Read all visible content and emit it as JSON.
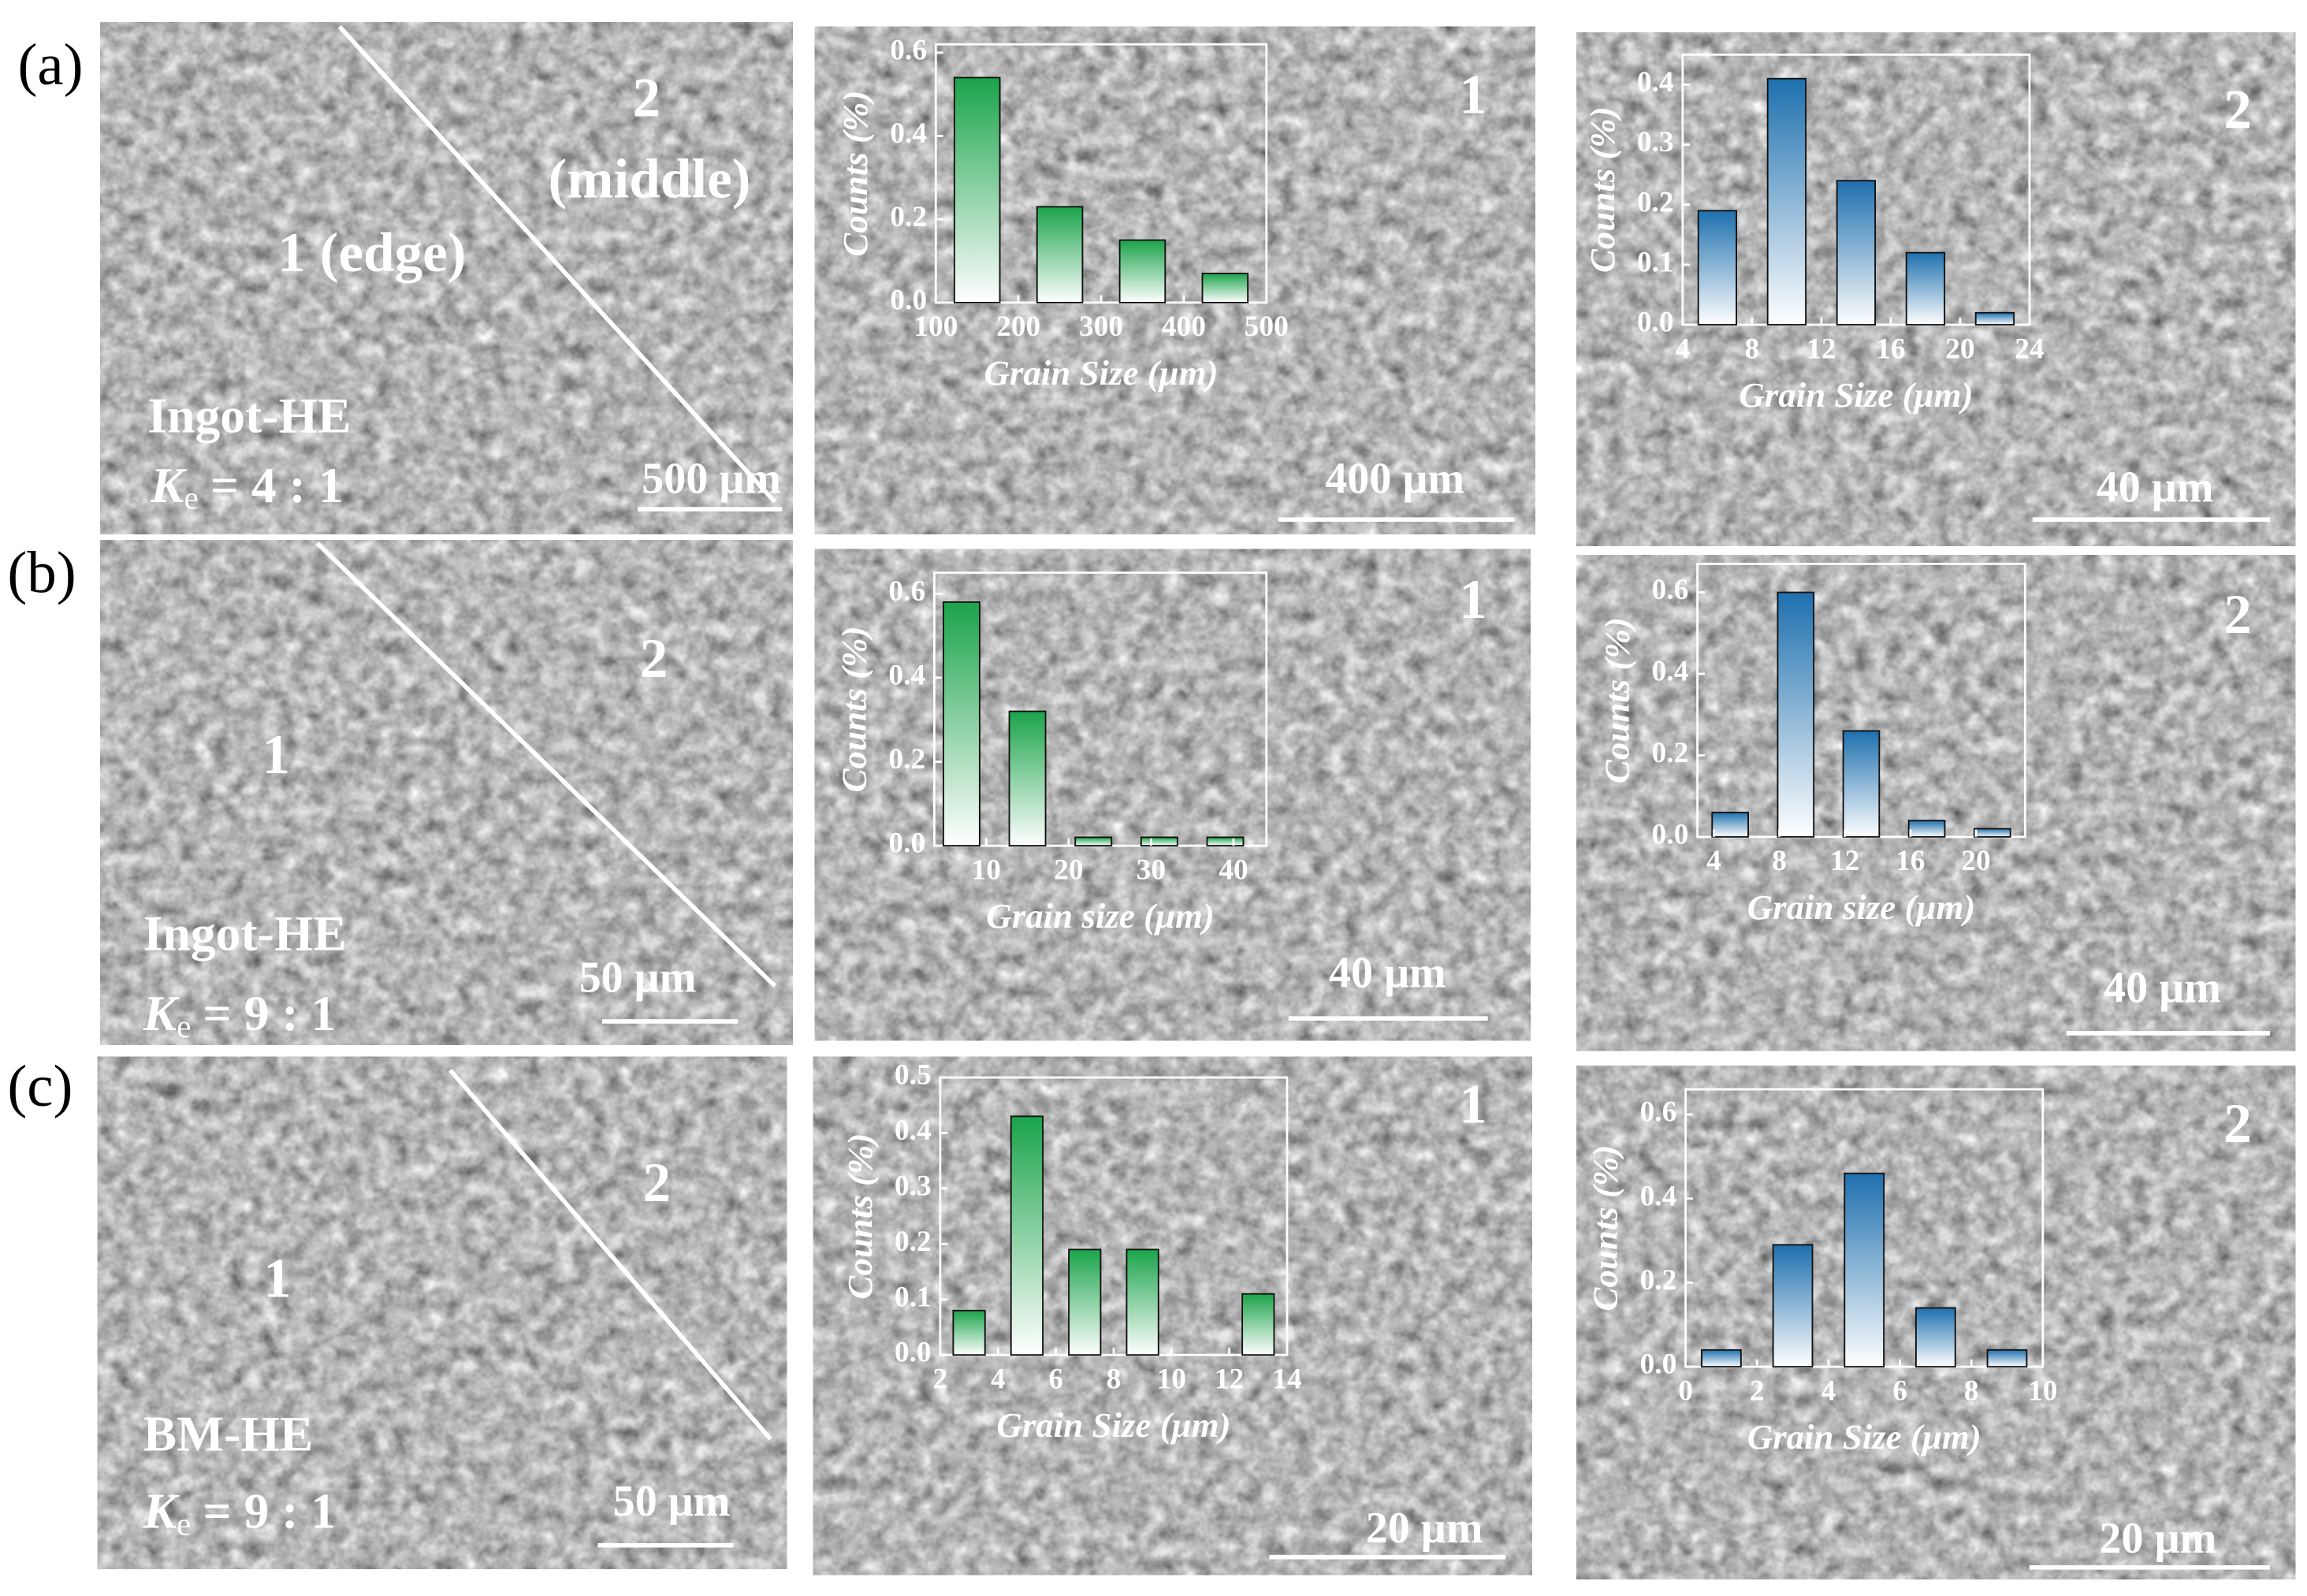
{
  "figure": {
    "rows": [
      {
        "label": "(a)",
        "left": {
          "regions": [
            "1 (edge)"
          ],
          "region2": [
            "2",
            "(middle)"
          ],
          "sample": "Ingot-HE",
          "ratio": {
            "symbol": "K",
            "subscript": "e",
            "value": "= 4 : 1"
          },
          "scale": "500 μm"
        },
        "middle": {
          "region": "1",
          "scale": "400 μm"
        },
        "right": {
          "region": "2",
          "scale": "40 μm"
        }
      },
      {
        "label": "(b)",
        "left": {
          "regions": [
            "1"
          ],
          "region2": [
            "2"
          ],
          "sample": "Ingot-HE",
          "ratio": {
            "symbol": "K",
            "subscript": "e",
            "value": "= 9 : 1"
          },
          "scale": "50 μm"
        },
        "middle": {
          "region": "1",
          "scale": "40 μm"
        },
        "right": {
          "region": "2",
          "scale": "40 μm"
        }
      },
      {
        "label": "(c)",
        "left": {
          "regions": [
            "1"
          ],
          "region2": [
            "2"
          ],
          "sample": "BM-HE",
          "ratio": {
            "symbol": "K",
            "subscript": "e",
            "value": "= 9 : 1"
          },
          "scale": "50 μm"
        },
        "middle": {
          "region": "1",
          "scale": "20 μm"
        },
        "right": {
          "region": "2",
          "scale": "20 μm"
        }
      }
    ]
  },
  "chart_data": [
    {
      "type": "histogram",
      "x_label": "Grain Size (μm)",
      "y_label": "Counts (%)",
      "bins": [
        100,
        200,
        300,
        400,
        500
      ],
      "values": [
        0.54,
        0.23,
        0.15,
        0.07
      ],
      "color": "#1aa34a",
      "xlim": [
        100,
        500
      ],
      "xticks": [
        100,
        200,
        300,
        400,
        500
      ],
      "ylim": [
        0,
        0.62
      ],
      "yticks": [
        0.0,
        0.2,
        0.4,
        0.6
      ]
    },
    {
      "type": "histogram",
      "x_label": "Grain Size (μm)",
      "y_label": "Counts (%)",
      "bins": [
        4,
        8,
        12,
        16,
        20,
        24
      ],
      "values": [
        0.19,
        0.41,
        0.24,
        0.12,
        0.02
      ],
      "color": "#1d6fae",
      "xlim": [
        4,
        24
      ],
      "xticks": [
        4,
        8,
        12,
        16,
        20,
        24
      ],
      "ylim": [
        0,
        0.45
      ],
      "yticks": [
        0.0,
        0.1,
        0.2,
        0.3,
        0.4
      ]
    },
    {
      "type": "histogram",
      "x_label": "Grain size (μm)",
      "y_label": "Counts (%)",
      "bins": [
        3,
        11,
        19,
        27,
        35,
        43
      ],
      "values": [
        0.58,
        0.32,
        0.02,
        0.02,
        0.02
      ],
      "color": "#1aa34a",
      "xlim": [
        3.7,
        44
      ],
      "xticks": [
        10,
        20,
        30,
        40
      ],
      "ylim": [
        0,
        0.65
      ],
      "yticks": [
        0.0,
        0.2,
        0.4,
        0.6
      ]
    },
    {
      "type": "histogram",
      "x_label": "Grain size (μm)",
      "y_label": "Counts (%)",
      "bins": [
        3,
        7,
        11,
        15,
        19,
        23
      ],
      "values": [
        0.06,
        0.6,
        0.26,
        0.04,
        0.02
      ],
      "color": "#1d6fae",
      "xlim": [
        3,
        23
      ],
      "xticks": [
        4,
        8,
        12,
        16,
        20
      ],
      "ylim": [
        0,
        0.67
      ],
      "yticks": [
        0.0,
        0.2,
        0.4,
        0.6
      ]
    },
    {
      "type": "histogram",
      "x_label": "Grain Size (μm)",
      "y_label": "Counts (%)",
      "bins": [
        2,
        4,
        6,
        8,
        10,
        12,
        14
      ],
      "values": [
        0.08,
        0.43,
        0.19,
        0.19,
        0,
        0.11
      ],
      "color": "#1aa34a",
      "xlim": [
        2,
        14
      ],
      "xticks": [
        2,
        4,
        6,
        8,
        10,
        12,
        14
      ],
      "ylim": [
        0,
        0.5
      ],
      "yticks": [
        0.0,
        0.1,
        0.2,
        0.3,
        0.4,
        0.5
      ]
    },
    {
      "type": "histogram",
      "x_label": "Grain Size (μm)",
      "y_label": "Counts (%)",
      "bins": [
        0,
        2,
        4,
        6,
        8,
        10
      ],
      "values": [
        0.04,
        0.29,
        0.46,
        0.14,
        0.04
      ],
      "color": "#1d6fae",
      "xlim": [
        0,
        10
      ],
      "xticks": [
        0,
        2,
        4,
        6,
        8,
        10
      ],
      "ylim": [
        0,
        0.66
      ],
      "yticks": [
        0.0,
        0.2,
        0.4,
        0.6
      ]
    }
  ]
}
